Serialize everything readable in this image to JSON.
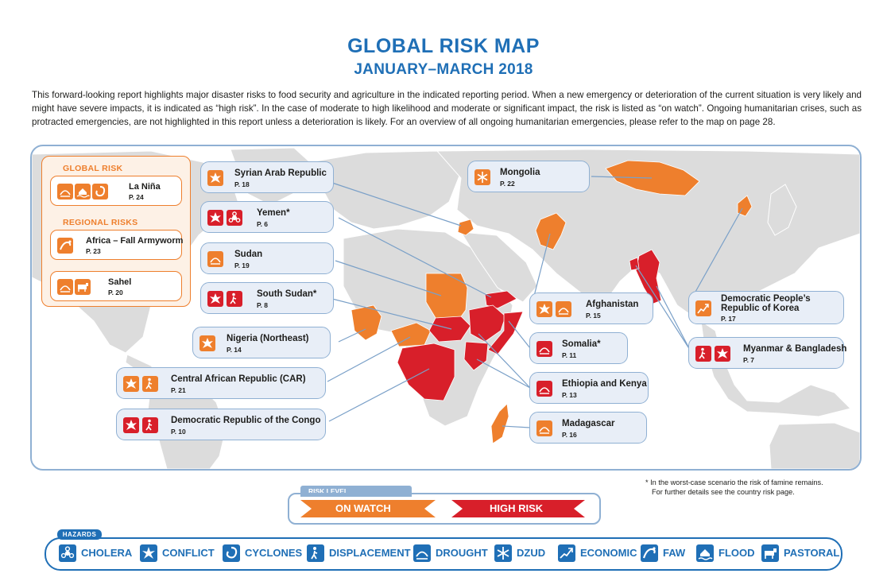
{
  "title": "GLOBAL RISK MAP",
  "subtitle": "JANUARY–MARCH 2018",
  "intro_lines": [
    "This forward-looking report highlights major disaster risks to food security and agriculture in the indicated reporting period. When a new emergency or deterioration of the current situation is very likely and",
    "might have severe impacts, it is indicated as “high risk”. In the case of moderate to high likelihood and moderate or significant impact, the risk is listed as “on watch”. Ongoing humanitarian crises, such as",
    "protracted emergencies, are not highlighted in this report unless a deterioration is likely. For an overview of all ongoing humanitarian emergencies, please refer to the map on page 28."
  ],
  "legend": {
    "global_heading": "GLOBAL RISK",
    "regional_heading": "REGIONAL RISKS",
    "global": [
      {
        "name": "La Niña",
        "page": "P. 24",
        "icons": [
          "drought-icon",
          "flood-icon",
          "cyclones-icon"
        ]
      }
    ],
    "regional": [
      {
        "name": "Africa – Fall Armyworm",
        "page": "P. 23",
        "icons": [
          "faw-icon"
        ]
      },
      {
        "name": "Sahel",
        "page": "P. 20",
        "icons": [
          "drought-icon",
          "pastoral-icon"
        ]
      }
    ]
  },
  "callouts": [
    {
      "id": "syria",
      "name": "Syrian Arab Republic",
      "page": "P. 18",
      "risk": "on watch",
      "icons": [
        "conflict-icon"
      ]
    },
    {
      "id": "yemen",
      "name": "Yemen*",
      "page": "P. 6",
      "risk": "high risk",
      "icons": [
        "conflict-icon",
        "cholera-icon"
      ]
    },
    {
      "id": "sudan",
      "name": "Sudan",
      "page": "P. 19",
      "risk": "on watch",
      "icons": [
        "drought-icon"
      ]
    },
    {
      "id": "south-sudan",
      "name": "South Sudan*",
      "page": "P. 8",
      "risk": "high risk",
      "icons": [
        "conflict-icon",
        "displacement-icon"
      ]
    },
    {
      "id": "nigeria",
      "name": "Nigeria (Northeast)",
      "page": "P. 14",
      "risk": "on watch",
      "icons": [
        "conflict-icon"
      ]
    },
    {
      "id": "car",
      "name": "Central African Republic (CAR)",
      "page": "P. 21",
      "risk": "on watch",
      "icons": [
        "conflict-icon",
        "displacement-icon"
      ]
    },
    {
      "id": "drc",
      "name": "Democratic Republic of the Congo",
      "page": "P. 10",
      "risk": "high risk",
      "icons": [
        "conflict-icon",
        "displacement-icon"
      ]
    },
    {
      "id": "mongolia",
      "name": "Mongolia",
      "page": "P. 22",
      "risk": "on watch",
      "icons": [
        "dzud-icon"
      ]
    },
    {
      "id": "afghanistan",
      "name": "Afghanistan",
      "page": "P. 15",
      "risk": "on watch",
      "icons": [
        "conflict-icon",
        "drought-icon"
      ]
    },
    {
      "id": "somalia",
      "name": "Somalia*",
      "page": "P. 11",
      "risk": "high risk",
      "icons": [
        "drought-icon"
      ]
    },
    {
      "id": "ethiopia-kenya",
      "name": "Ethiopia and Kenya",
      "page": "P. 13",
      "risk": "high risk",
      "icons": [
        "drought-icon"
      ]
    },
    {
      "id": "madagascar",
      "name": "Madagascar",
      "page": "P. 16",
      "risk": "on watch",
      "icons": [
        "drought-icon"
      ]
    },
    {
      "id": "dprk",
      "name": "Democratic People’s\nRepublic of Korea",
      "name_line1": "Democratic People’s",
      "name_line2": "Republic of Korea",
      "page": "P. 17",
      "risk": "on watch",
      "icons": [
        "economic-icon"
      ]
    },
    {
      "id": "myanmar",
      "name": "Myanmar & Bangladesh",
      "page": "P. 7",
      "risk": "high risk",
      "icons": [
        "displacement-icon",
        "conflict-icon"
      ]
    }
  ],
  "risk_level": {
    "tab": "RISK LEVEL",
    "on_watch": "ON WATCH",
    "high_risk": "HIGH RISK"
  },
  "footnote": {
    "line1": "* In the worst-case scenario the risk of famine remains.",
    "line2": "For further details see the country risk page."
  },
  "hazards": {
    "tab": "HAZARDS",
    "items": [
      {
        "label": "CHOLERA",
        "icon": "cholera-icon"
      },
      {
        "label": "CONFLICT",
        "icon": "conflict-icon"
      },
      {
        "label": "CYCLONES",
        "icon": "cyclones-icon"
      },
      {
        "label": "DISPLACEMENT",
        "icon": "displacement-icon"
      },
      {
        "label": "DROUGHT",
        "icon": "drought-icon"
      },
      {
        "label": "DZUD",
        "icon": "dzud-icon"
      },
      {
        "label": "ECONOMIC",
        "icon": "economic-icon"
      },
      {
        "label": "FAW",
        "icon": "faw-icon"
      },
      {
        "label": "FLOOD",
        "icon": "flood-icon"
      },
      {
        "label": "PASTORAL",
        "icon": "pastoral-icon"
      }
    ]
  },
  "colors": {
    "on_watch": "#ee7f2d",
    "high_risk": "#d81f2a",
    "accent_blue": "#1f6fb6",
    "land": "#dcdcdc",
    "callout_bg": "#e8eef7"
  }
}
